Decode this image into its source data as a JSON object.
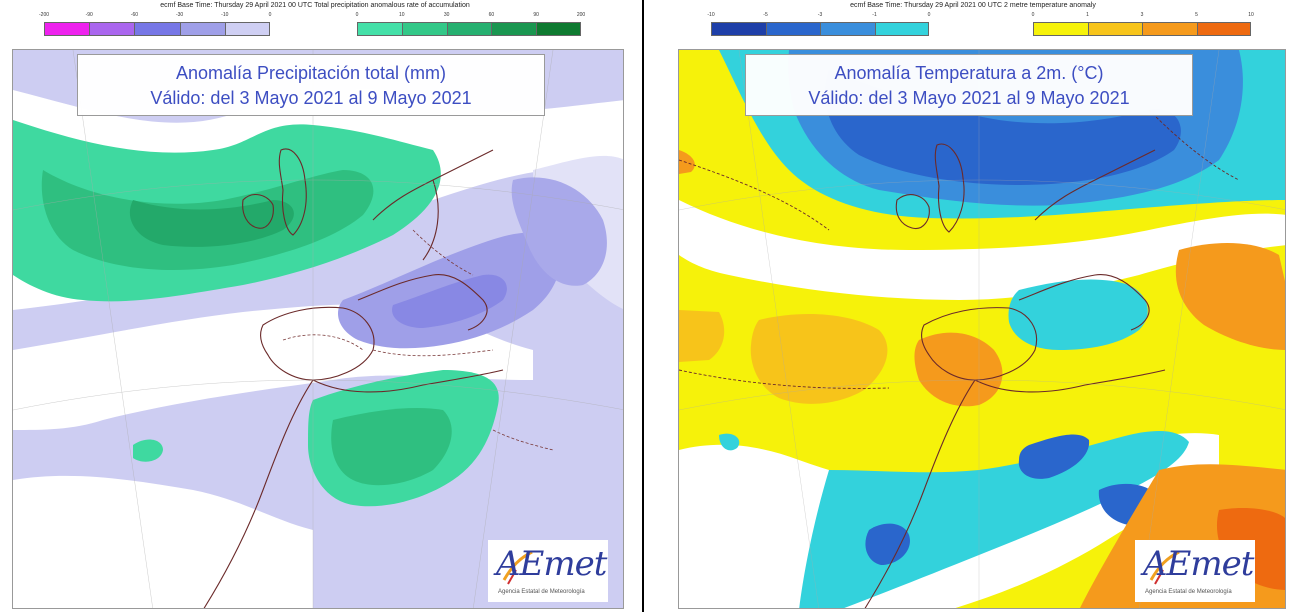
{
  "left": {
    "header": "ecmf  Base Time: Thursday 29 April 2021 00 UTC Total precipitation anomalous rate of accumulation",
    "title_line1": "Anomalía Precipitación total (mm)",
    "title_line2": "Válido: del 3 Mayo 2021 al 9 Mayo 2021",
    "neg_ticks": [
      "-200",
      "-90",
      "-60",
      "-30",
      "-10",
      "0"
    ],
    "pos_ticks": [
      "0",
      "10",
      "30",
      "60",
      "90",
      "200"
    ],
    "neg_colors": [
      "#ee22ee",
      "#aa66ee",
      "#7777e6",
      "#9f9fe8",
      "#cfcff3"
    ],
    "pos_colors": [
      "#44e0a8",
      "#33c888",
      "#26b070",
      "#1a9650",
      "#0e7a30"
    ],
    "logo_text": "AEmet",
    "logo_sub": "Agencia Estatal de Meteorología"
  },
  "right": {
    "header": "ecmf  Base Time: Thursday 29 April 2021 00 UTC 2 metre temperature anomaly",
    "title_line1": "Anomalía Temperatura a 2m. (°C)",
    "title_line2": "Válido: del 3 Mayo 2021 al 9 Mayo 2021",
    "neg_ticks": [
      "-10",
      "-5",
      "-3",
      "-1",
      "0"
    ],
    "pos_ticks": [
      "0",
      "1",
      "3",
      "5",
      "10"
    ],
    "neg_colors": [
      "#1e3fa8",
      "#2a66cc",
      "#3a8edc",
      "#33d2dc"
    ],
    "pos_colors": [
      "#f6f20a",
      "#f7c41a",
      "#f59a1c",
      "#ee6a10"
    ],
    "logo_text": "AEmet",
    "logo_sub": "Agencia Estatal de Meteorología"
  }
}
